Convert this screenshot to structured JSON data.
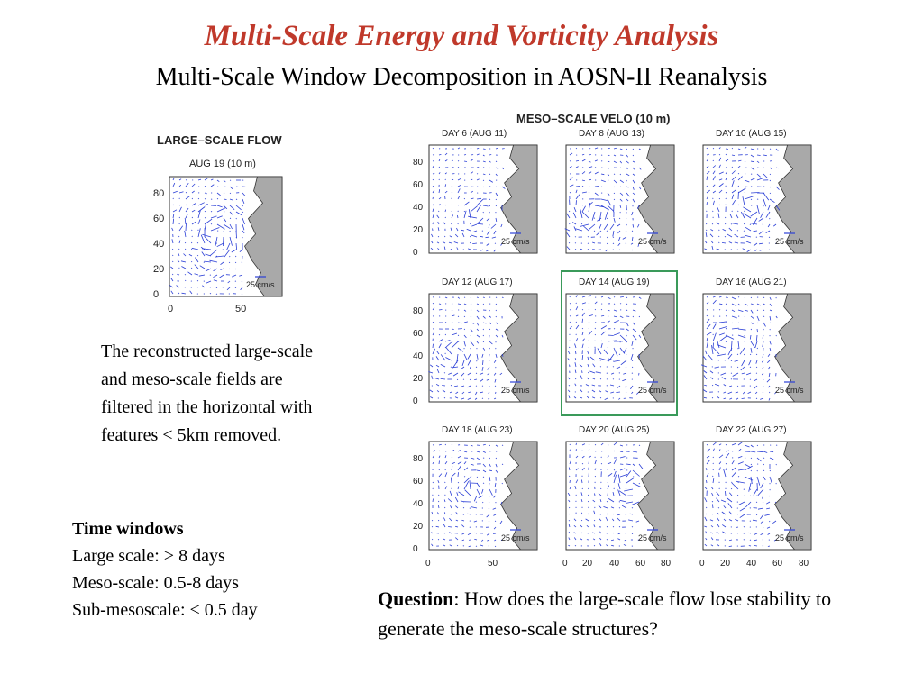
{
  "title": "Multi-Scale Energy and Vorticity Analysis",
  "subtitle": "Multi-Scale Window Decomposition in AOSN-II Reanalysis",
  "large_scale_figure": {
    "title": "LARGE–SCALE  FLOW",
    "subtitle": "AUG 19 (10 m)",
    "y_ticks": [
      "80",
      "60",
      "40",
      "20",
      "0"
    ],
    "x_ticks": [
      "0",
      "50"
    ],
    "scale_label": "25 cm/s"
  },
  "meso_figure": {
    "title": "MESO–SCALE  VELO  (10 m)",
    "panels": [
      {
        "label": "DAY 6  (AUG 11)"
      },
      {
        "label": "DAY 8  (AUG 13)"
      },
      {
        "label": "DAY 10  (AUG 15)"
      },
      {
        "label": "DAY 12  (AUG 17)"
      },
      {
        "label": "DAY 14  (AUG 19)"
      },
      {
        "label": "DAY 16  (AUG 21)"
      },
      {
        "label": "DAY 18  (AUG 23)"
      },
      {
        "label": "DAY 20  (AUG 25)"
      },
      {
        "label": "DAY 22  (AUG 27)"
      }
    ],
    "y_ticks": [
      "80",
      "60",
      "40",
      "20",
      "0"
    ],
    "x_ticks_col1": [
      "0",
      "50"
    ],
    "x_ticks_col2": [
      "0",
      "20",
      "40",
      "60",
      "80"
    ],
    "x_ticks_col3": [
      "0",
      "20",
      "40",
      "60",
      "80"
    ],
    "scale_label": "25 cm/s",
    "highlight_color": "#3a9a5a",
    "vector_color": "#2b3fd6",
    "land_color": "#a9a9a9"
  },
  "description": "The reconstructed large-scale and meso-scale fields are filtered in the horizontal with features < 5km removed.",
  "time_windows": {
    "heading": "Time windows",
    "large": "Large scale: > 8 days",
    "meso": "Meso-scale: 0.5-8 days",
    "sub": "Sub-mesoscale: < 0.5 day"
  },
  "question": {
    "label": "Question",
    "text": ": How does the large-scale flow lose stability to generate the meso-scale structures?"
  }
}
